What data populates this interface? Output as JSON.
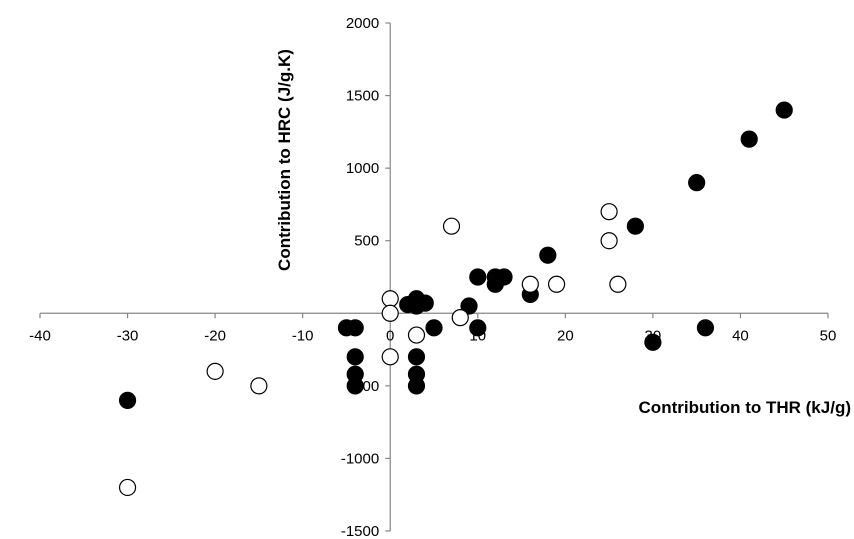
{
  "chart_data": {
    "type": "scatter",
    "title": "",
    "xlabel": "Contribution to THR (kJ/g)",
    "ylabel": "Contribution to HRC (J/g.K)",
    "xlim": [
      -40,
      50
    ],
    "ylim": [
      -1500,
      2000
    ],
    "xticks": [
      -40,
      -30,
      -20,
      -10,
      0,
      10,
      20,
      30,
      40,
      50
    ],
    "yticks": [
      -1500,
      -1000,
      -500,
      500,
      1000,
      1500,
      2000
    ],
    "x_tick_labels": [
      "-40",
      "-30",
      "-20",
      "-10",
      "0",
      "10",
      "20",
      "30",
      "40",
      "50"
    ],
    "y_tick_labels": [
      "-1500",
      "-1000",
      "-500",
      "500",
      "1000",
      "1500",
      "2000"
    ],
    "grid": false,
    "legend": "none",
    "series": [
      {
        "marker": "filled-circle",
        "color": "#000000",
        "points": [
          [
            -30,
            -600
          ],
          [
            -5,
            -100
          ],
          [
            -4,
            -100
          ],
          [
            -4,
            -300
          ],
          [
            -4,
            -420
          ],
          [
            -4,
            -500
          ],
          [
            2,
            60
          ],
          [
            3,
            100
          ],
          [
            3,
            50
          ],
          [
            4,
            70
          ],
          [
            3,
            -300
          ],
          [
            3,
            -420
          ],
          [
            3,
            -500
          ],
          [
            5,
            -100
          ],
          [
            9,
            50
          ],
          [
            10,
            250
          ],
          [
            10,
            -100
          ],
          [
            12,
            200
          ],
          [
            12,
            250
          ],
          [
            13,
            250
          ],
          [
            16,
            130
          ],
          [
            18,
            400
          ],
          [
            28,
            600
          ],
          [
            30,
            -200
          ],
          [
            35,
            900
          ],
          [
            36,
            -100
          ],
          [
            41,
            1200
          ],
          [
            45,
            1400
          ]
        ]
      },
      {
        "marker": "open-circle",
        "color": "#000000",
        "points": [
          [
            -30,
            -1200
          ],
          [
            -20,
            -400
          ],
          [
            -15,
            -500
          ],
          [
            0,
            100
          ],
          [
            0,
            0
          ],
          [
            0,
            -300
          ],
          [
            3,
            -150
          ],
          [
            7,
            600
          ],
          [
            8,
            -30
          ],
          [
            16,
            200
          ],
          [
            19,
            200
          ],
          [
            25,
            700
          ],
          [
            25,
            500
          ],
          [
            26,
            200
          ]
        ]
      }
    ]
  }
}
